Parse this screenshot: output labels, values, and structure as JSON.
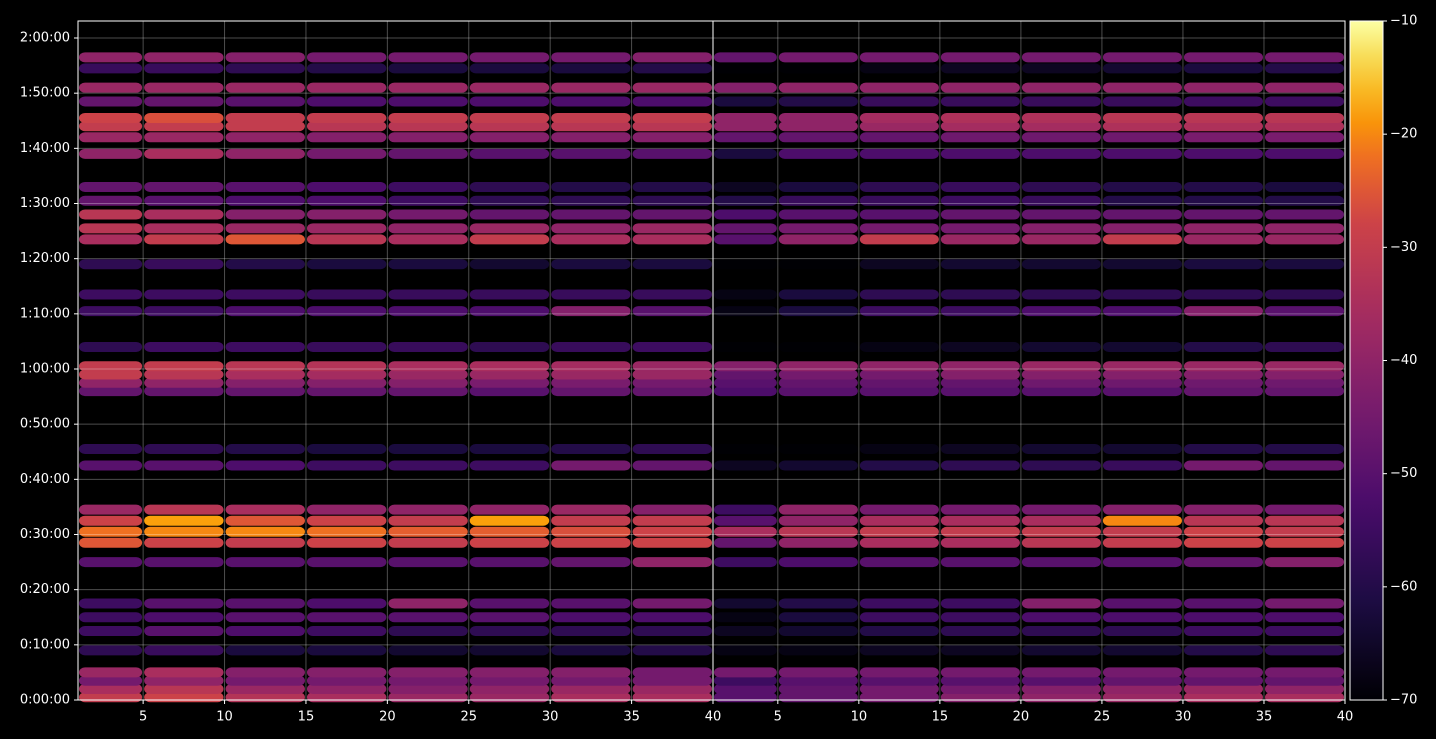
{
  "chart_data": [
    {
      "type": "heatmap",
      "colormap": "inferno",
      "grid": true,
      "xbins": [
        1,
        5,
        10,
        15,
        20,
        25,
        30,
        35,
        40
      ],
      "xlim": [
        1,
        40
      ],
      "xticks": [
        5,
        10,
        15,
        20,
        25,
        30,
        35,
        40
      ],
      "ylim": [
        0,
        7385
      ],
      "yticks": [
        {
          "value": 0,
          "label": "0:00:00"
        },
        {
          "value": 600,
          "label": "0:10:00"
        },
        {
          "value": 1200,
          "label": "0:20:00"
        },
        {
          "value": 1800,
          "label": "0:30:00"
        },
        {
          "value": 2400,
          "label": "0:40:00"
        },
        {
          "value": 3000,
          "label": "0:50:00"
        },
        {
          "value": 3600,
          "label": "1:00:00"
        },
        {
          "value": 4200,
          "label": "1:10:00"
        },
        {
          "value": 4800,
          "label": "1:20:00"
        },
        {
          "value": 5400,
          "label": "1:30:00"
        },
        {
          "value": 6000,
          "label": "1:40:00"
        },
        {
          "value": 6600,
          "label": "1:50:00"
        },
        {
          "value": 7200,
          "label": "2:00:00"
        }
      ],
      "y": [
        30,
        120,
        210,
        300,
        540,
        750,
        900,
        1050,
        1500,
        1710,
        1830,
        1950,
        2070,
        2550,
        2730,
        3360,
        3450,
        3540,
        3630,
        3840,
        4230,
        4410,
        4740,
        5010,
        5130,
        5280,
        5430,
        5580,
        5940,
        6120,
        6240,
        6330,
        6510,
        6660,
        6870,
        6990
      ],
      "values": [
        [
          -30,
          -28,
          -33,
          -35,
          -38,
          -38,
          -35,
          -35
        ],
        [
          -35,
          -32,
          -38,
          -40,
          -42,
          -40,
          -38,
          -38
        ],
        [
          -45,
          -40,
          -45,
          -45,
          -45,
          -45,
          -45,
          -45
        ],
        [
          -38,
          -35,
          -42,
          -42,
          -42,
          -42,
          -42,
          -45
        ],
        [
          -58,
          -56,
          -62,
          -62,
          -64,
          -64,
          -62,
          -60
        ],
        [
          -55,
          -50,
          -52,
          -55,
          -58,
          -58,
          -58,
          -58
        ],
        [
          -55,
          -52,
          -50,
          -50,
          -50,
          -50,
          -52,
          -52
        ],
        [
          -55,
          -50,
          -50,
          -52,
          -40,
          -50,
          -50,
          -45
        ],
        [
          -50,
          -50,
          -50,
          -50,
          -50,
          -50,
          -48,
          -40
        ],
        [
          -25,
          -28,
          -30,
          -28,
          -30,
          -28,
          -28,
          -28
        ],
        [
          -22,
          -20,
          -20,
          -22,
          -24,
          -24,
          -26,
          -28
        ],
        [
          -28,
          -18,
          -25,
          -28,
          -30,
          -18,
          -30,
          -30
        ],
        [
          -38,
          -32,
          -35,
          -40,
          -40,
          -40,
          -38,
          -42
        ],
        [
          -50,
          -50,
          -52,
          -55,
          -55,
          -55,
          -45,
          -48
        ],
        [
          -58,
          -58,
          -60,
          -62,
          -62,
          -62,
          -60,
          -58
        ],
        [
          -48,
          -48,
          -48,
          -48,
          -48,
          -50,
          -48,
          -48
        ],
        [
          -40,
          -40,
          -42,
          -42,
          -42,
          -44,
          -44,
          -45
        ],
        [
          -30,
          -32,
          -35,
          -36,
          -38,
          -38,
          -38,
          -38
        ],
        [
          -30,
          -30,
          -32,
          -33,
          -35,
          -35,
          -36,
          -38
        ],
        [
          -58,
          -55,
          -55,
          -56,
          -56,
          -58,
          -56,
          -55
        ],
        [
          -55,
          -55,
          -52,
          -52,
          -52,
          -52,
          -42,
          -50
        ],
        [
          -55,
          -55,
          -55,
          -56,
          -56,
          -56,
          -56,
          -56
        ],
        [
          -58,
          -56,
          -60,
          -62,
          -62,
          -64,
          -62,
          -62
        ],
        [
          -35,
          -30,
          -25,
          -32,
          -35,
          -30,
          -35,
          -35
        ],
        [
          -32,
          -35,
          -38,
          -38,
          -40,
          -38,
          -40,
          -38
        ],
        [
          -32,
          -35,
          -42,
          -42,
          -45,
          -48,
          -48,
          -48
        ],
        [
          -48,
          -50,
          -52,
          -52,
          -55,
          -58,
          -58,
          -58
        ],
        [
          -48,
          -48,
          -50,
          -52,
          -55,
          -58,
          -60,
          -60
        ],
        [
          -40,
          -35,
          -40,
          -45,
          -48,
          -50,
          -50,
          -50
        ],
        [
          -38,
          -38,
          -40,
          -42,
          -42,
          -42,
          -42,
          -42
        ],
        [
          -30,
          -30,
          -30,
          -32,
          -32,
          -32,
          -32,
          -32
        ],
        [
          -28,
          -26,
          -30,
          -30,
          -30,
          -30,
          -30,
          -30
        ],
        [
          -48,
          -48,
          -50,
          -52,
          -52,
          -52,
          -52,
          -52
        ],
        [
          -38,
          -38,
          -38,
          -38,
          -38,
          -38,
          -38,
          -38
        ],
        [
          -56,
          -56,
          -58,
          -60,
          -62,
          -62,
          -62,
          -60
        ],
        [
          -40,
          -40,
          -42,
          -45,
          -45,
          -45,
          -45,
          -42
        ]
      ]
    },
    {
      "type": "heatmap",
      "colormap": "inferno",
      "grid": true,
      "xbins": [
        1,
        5,
        10,
        15,
        20,
        25,
        30,
        35,
        40
      ],
      "xlim": [
        1,
        40
      ],
      "xticks": [
        5,
        10,
        15,
        20,
        25,
        30,
        35,
        40
      ],
      "ylim": [
        0,
        7385
      ],
      "y": [
        30,
        120,
        210,
        300,
        540,
        750,
        900,
        1050,
        1500,
        1710,
        1830,
        1950,
        2070,
        2550,
        2730,
        3360,
        3450,
        3540,
        3630,
        3840,
        4230,
        4410,
        4740,
        5010,
        5130,
        5280,
        5430,
        5580,
        5940,
        6120,
        6240,
        6330,
        6510,
        6660,
        6870,
        6990
      ],
      "values": [
        [
          -50,
          -48,
          -45,
          -42,
          -40,
          -38,
          -35,
          -35
        ],
        [
          -50,
          -48,
          -45,
          -45,
          -42,
          -40,
          -38,
          -40
        ],
        [
          -55,
          -50,
          -50,
          -50,
          -50,
          -48,
          -48,
          -48
        ],
        [
          -45,
          -45,
          -45,
          -45,
          -45,
          -45,
          -45,
          -45
        ],
        [
          -68,
          -68,
          -66,
          -66,
          -64,
          -64,
          -60,
          -58
        ],
        [
          -66,
          -64,
          -60,
          -58,
          -58,
          -58,
          -55,
          -55
        ],
        [
          -68,
          -62,
          -55,
          -55,
          -52,
          -52,
          -52,
          -52
        ],
        [
          -64,
          -60,
          -55,
          -55,
          -42,
          -50,
          -50,
          -45
        ],
        [
          -55,
          -52,
          -50,
          -50,
          -50,
          -50,
          -48,
          -42
        ],
        [
          -48,
          -40,
          -35,
          -35,
          -32,
          -30,
          -28,
          -28
        ],
        [
          -35,
          -32,
          -30,
          -30,
          -30,
          -30,
          -28,
          -30
        ],
        [
          -50,
          -40,
          -35,
          -35,
          -35,
          -20,
          -32,
          -32
        ],
        [
          -55,
          -40,
          -45,
          -45,
          -45,
          -42,
          -42,
          -45
        ],
        [
          -66,
          -64,
          -60,
          -58,
          -58,
          -56,
          -45,
          -48
        ],
        [
          -70,
          -70,
          -68,
          -66,
          -64,
          -64,
          -60,
          -60
        ],
        [
          -52,
          -50,
          -50,
          -50,
          -50,
          -50,
          -48,
          -48
        ],
        [
          -50,
          -48,
          -48,
          -48,
          -46,
          -46,
          -46,
          -46
        ],
        [
          -48,
          -45,
          -45,
          -42,
          -42,
          -42,
          -42,
          -42
        ],
        [
          -42,
          -40,
          -40,
          -40,
          -38,
          -38,
          -38,
          -38
        ],
        [
          -70,
          -70,
          -68,
          -66,
          -64,
          -64,
          -60,
          -58
        ],
        [
          -68,
          -62,
          -55,
          -55,
          -52,
          -52,
          -42,
          -50
        ],
        [
          -68,
          -62,
          -58,
          -58,
          -58,
          -58,
          -58,
          -58
        ],
        [
          -70,
          -70,
          -66,
          -64,
          -64,
          -64,
          -62,
          -62
        ],
        [
          -50,
          -40,
          -30,
          -38,
          -38,
          -30,
          -38,
          -38
        ],
        [
          -48,
          -45,
          -45,
          -45,
          -42,
          -42,
          -40,
          -40
        ],
        [
          -52,
          -50,
          -50,
          -48,
          -48,
          -48,
          -48,
          -48
        ],
        [
          -60,
          -56,
          -56,
          -55,
          -56,
          -60,
          -60,
          -60
        ],
        [
          -66,
          -62,
          -58,
          -56,
          -58,
          -60,
          -60,
          -62
        ],
        [
          -62,
          -52,
          -52,
          -52,
          -52,
          -52,
          -52,
          -52
        ],
        [
          -48,
          -48,
          -48,
          -46,
          -46,
          -46,
          -44,
          -44
        ],
        [
          -40,
          -40,
          -38,
          -36,
          -36,
          -34,
          -34,
          -34
        ],
        [
          -40,
          -40,
          -36,
          -34,
          -34,
          -32,
          -32,
          -32
        ],
        [
          -62,
          -60,
          -56,
          -56,
          -56,
          -56,
          -55,
          -55
        ],
        [
          -42,
          -40,
          -40,
          -40,
          -40,
          -40,
          -40,
          -40
        ],
        [
          -70,
          -70,
          -68,
          -66,
          -66,
          -64,
          -62,
          -60
        ],
        [
          -48,
          -45,
          -45,
          -45,
          -45,
          -45,
          -45,
          -45
        ]
      ],
      "colorbar": {
        "lim": [
          -70,
          -10
        ],
        "ticks": [
          {
            "value": -70,
            "label": "−70"
          },
          {
            "value": -60,
            "label": "−60"
          },
          {
            "value": -50,
            "label": "−50"
          },
          {
            "value": -40,
            "label": "−40"
          },
          {
            "value": -30,
            "label": "−30"
          },
          {
            "value": -20,
            "label": "−20"
          },
          {
            "value": -10,
            "label": "−10"
          }
        ]
      }
    }
  ]
}
